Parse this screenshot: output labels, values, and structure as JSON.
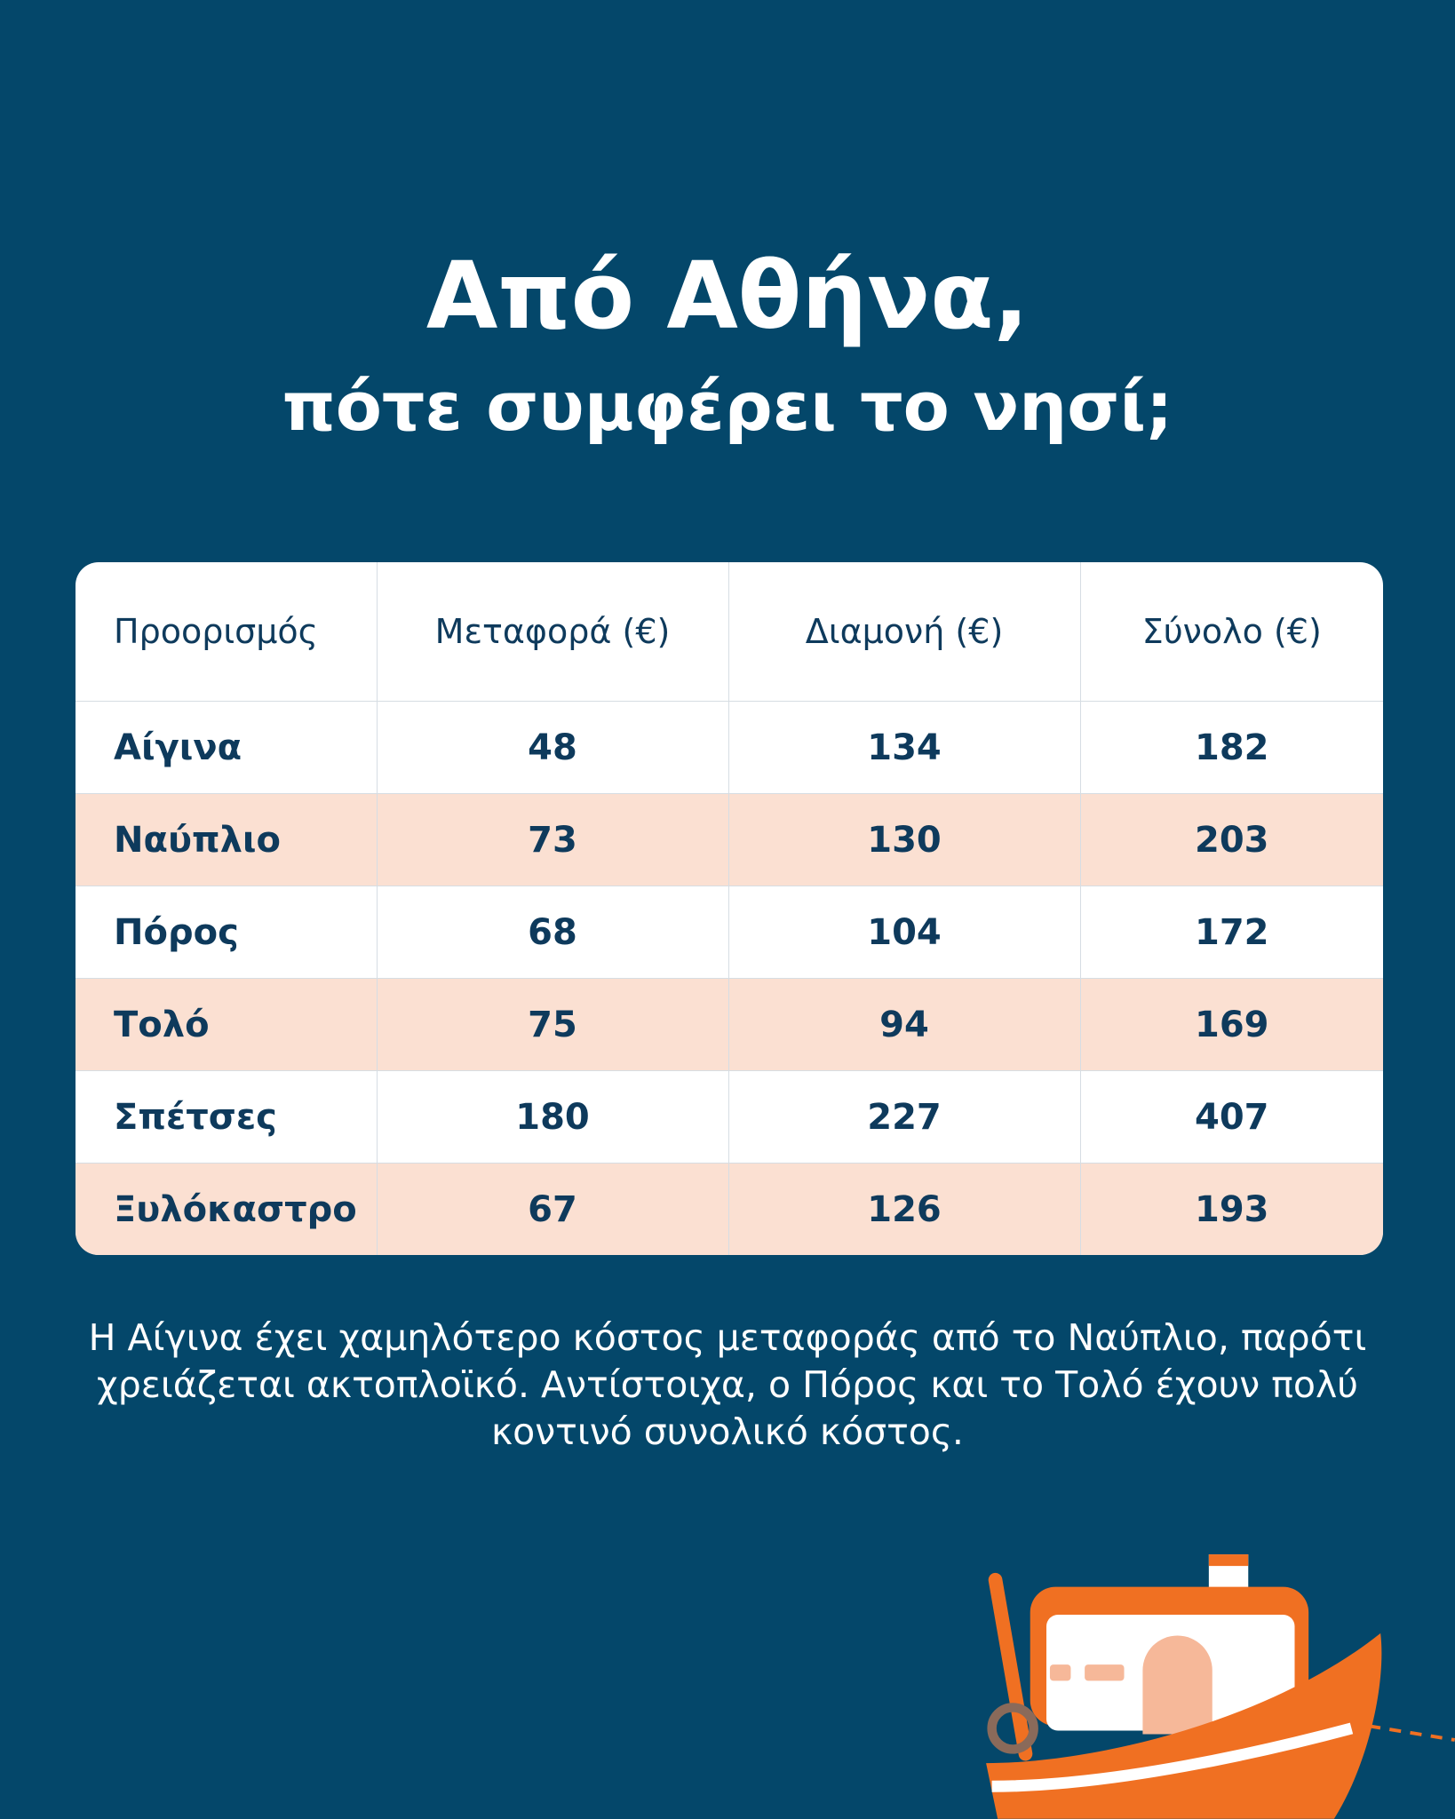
{
  "header": {
    "title": "Από Αθήνα,",
    "subtitle": "πότε συμφέρει το νησί;"
  },
  "table": {
    "header": [
      "Προορισμός",
      "Μεταφορά (€)",
      "Διαμονή (€)",
      "Σύνολο (€)"
    ],
    "rows": [
      [
        "Αίγινα",
        48,
        134,
        182
      ],
      [
        "Ναύπλιο",
        73,
        130,
        203
      ],
      [
        "Πόρος",
        68,
        104,
        172
      ],
      [
        "Τολό",
        75,
        94,
        169
      ],
      [
        "Σπέτσες",
        180,
        227,
        407
      ],
      [
        "Ξυλόκαστρο",
        67,
        126,
        193
      ]
    ]
  },
  "note": "Η Αίγινα έχει χαμηλότερο κόστος μεταφοράς από το Ναύπλιο, παρότι χρειάζεται ακτοπλοϊκό. Αντίστοιχα, ο Πόρος και το Τολό έχουν πολύ κοντινό συνολικό κόστος."
}
